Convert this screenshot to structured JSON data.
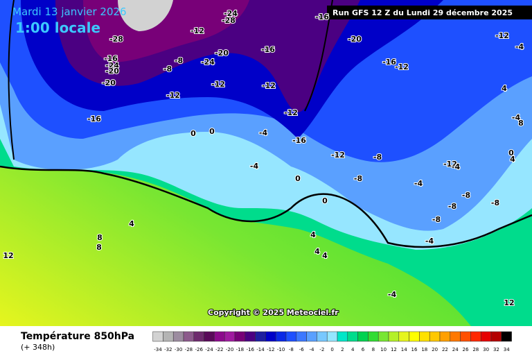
{
  "header": {
    "date": "Mardi 13 janvier 2026",
    "time": "1:00 locale",
    "run": "Run GFS 12 Z du Lundi 29 décembre 2025"
  },
  "copyright": "Copyright © 2025 Meteociel.fr",
  "footer": {
    "title": "Température 850hPa",
    "subtitle": "(+ 348h)"
  },
  "colorbar": {
    "ticks": [
      -34,
      -32,
      -30,
      -28,
      -26,
      -24,
      -22,
      -20,
      -18,
      -16,
      -14,
      -12,
      -10,
      -8,
      -6,
      -4,
      -2,
      0,
      2,
      4,
      6,
      8,
      10,
      12,
      14,
      16,
      18,
      20,
      22,
      24,
      26,
      28,
      30,
      32,
      34
    ],
    "colors": [
      "#d2d2d2",
      "#b4b4b4",
      "#9c8ca0",
      "#8c5a8c",
      "#6e2a6e",
      "#5a0a5a",
      "#8c0a8c",
      "#a01aa0",
      "#780078",
      "#4b0082",
      "#1e1ea0",
      "#0000c8",
      "#0a28e6",
      "#1e50ff",
      "#3c78ff",
      "#5aa0ff",
      "#78c8ff",
      "#96e6ff",
      "#00e6c8",
      "#00dc8c",
      "#00d250",
      "#32dc32",
      "#78e632",
      "#b4f028",
      "#e6f51e",
      "#ffff00",
      "#ffe100",
      "#ffc800",
      "#ffa000",
      "#ff7800",
      "#ff5000",
      "#ff2800",
      "#e60000",
      "#b40000",
      "#000000"
    ]
  },
  "map_labels": [
    -28,
    -24,
    -20,
    -20,
    -16,
    -12,
    -8,
    -8,
    -20,
    -24,
    -12,
    -12,
    -16,
    -12,
    -20,
    -16,
    -12,
    -16,
    -12,
    -8,
    -4,
    -16,
    -12,
    0,
    0,
    -4,
    -8,
    -12,
    -8,
    0,
    0,
    4,
    4,
    8,
    12,
    8,
    -4,
    -8,
    -8,
    -4,
    -4,
    -8,
    -4,
    4,
    4,
    4,
    -4,
    12,
    -24,
    -28,
    -16,
    -12,
    -4,
    4,
    8,
    0
  ]
}
